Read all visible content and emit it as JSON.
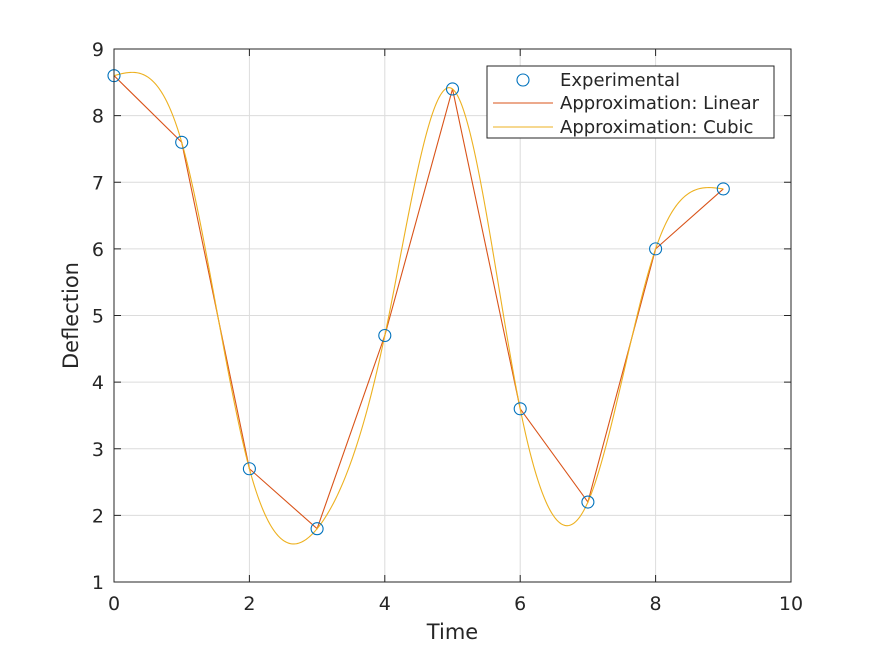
{
  "chart_data": {
    "type": "line",
    "title": "",
    "xlabel": "Time",
    "ylabel": "Deflection",
    "xlim": [
      0,
      10
    ],
    "ylim": [
      1,
      9
    ],
    "xticks": [
      0,
      2,
      4,
      6,
      8,
      10
    ],
    "yticks": [
      1,
      2,
      3,
      4,
      5,
      6,
      7,
      8,
      9
    ],
    "grid": true,
    "legend_position": "top-right",
    "x": [
      0,
      1,
      2,
      3,
      4,
      5,
      6,
      7,
      8,
      9
    ],
    "series": [
      {
        "name": "Experimental",
        "style": "markers",
        "color": "#0072BD",
        "values": [
          8.6,
          7.6,
          2.7,
          1.8,
          4.7,
          8.4,
          3.6,
          2.2,
          6.0,
          6.9
        ]
      },
      {
        "name": "Approximation: Linear",
        "style": "line",
        "color": "#D95319",
        "values": [
          8.6,
          7.6,
          2.7,
          1.8,
          4.7,
          8.4,
          3.6,
          2.2,
          6.0,
          6.9
        ]
      },
      {
        "name": "Approximation: Cubic",
        "style": "smooth-line",
        "color": "#EDB120",
        "values": [
          8.6,
          7.6,
          2.7,
          1.8,
          4.7,
          8.4,
          3.6,
          2.2,
          6.0,
          6.9
        ]
      }
    ]
  }
}
